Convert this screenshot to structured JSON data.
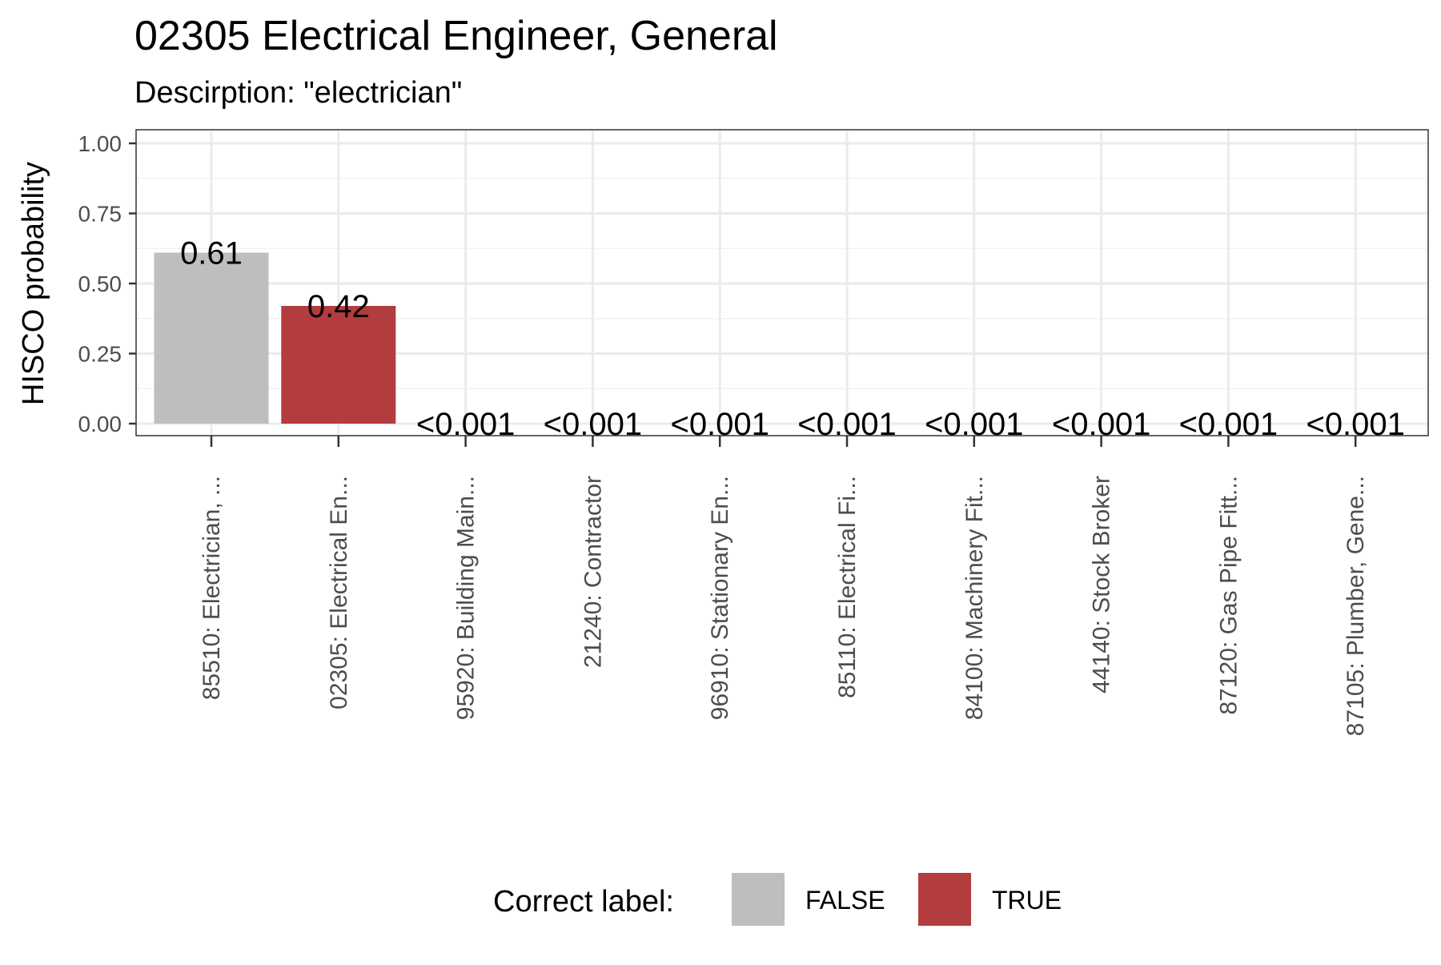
{
  "chart_data": {
    "type": "bar",
    "title": "02305 Electrical Engineer, General",
    "subtitle": "Descirption: \"electrician\"",
    "xlabel": "",
    "ylabel": "HISCO probability",
    "ylim": [
      0,
      1.0
    ],
    "yticks": [
      "0.00",
      "0.25",
      "0.50",
      "0.75",
      "1.00"
    ],
    "grid": true,
    "categories": [
      "85510: Electrician, ...",
      "02305: Electrical En...",
      "95920: Building Main...",
      "21240: Contractor",
      "96910: Stationary En...",
      "85110: Electrical Fi...",
      "84100: Machinery Fit...",
      "44140: Stock Broker",
      "87120: Gas Pipe Fitt...",
      "87105: Plumber, Gene..."
    ],
    "values": [
      0.61,
      0.42,
      0,
      0,
      0,
      0,
      0,
      0,
      0,
      0
    ],
    "data_labels": [
      "0.61",
      "0.42",
      "<0.001",
      "<0.001",
      "<0.001",
      "<0.001",
      "<0.001",
      "<0.001",
      "<0.001",
      "<0.001"
    ],
    "correct": [
      false,
      true,
      false,
      false,
      false,
      false,
      false,
      false,
      false,
      false
    ],
    "legend": {
      "title": "Correct label:",
      "placement": "bottom",
      "items": [
        {
          "label": "FALSE",
          "color": "#bebebe"
        },
        {
          "label": "TRUE",
          "color": "#b33c3e"
        }
      ]
    }
  }
}
